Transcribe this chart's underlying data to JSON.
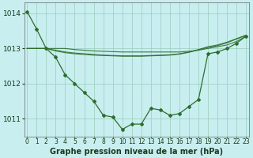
{
  "title": "Graphe pression niveau de la mer (hPa)",
  "background_color": "#c8eef0",
  "grid_color": "#99ccbb",
  "line_color": "#2d6e2d",
  "x_labels": [
    "0",
    "1",
    "2",
    "3",
    "4",
    "5",
    "6",
    "7",
    "8",
    "9",
    "10",
    "11",
    "12",
    "13",
    "14",
    "15",
    "16",
    "17",
    "18",
    "19",
    "20",
    "21",
    "22",
    "23"
  ],
  "hours": [
    0,
    1,
    2,
    3,
    4,
    5,
    6,
    7,
    8,
    9,
    10,
    11,
    12,
    13,
    14,
    15,
    16,
    17,
    18,
    19,
    20,
    21,
    22,
    23
  ],
  "pressure_main": [
    1014.05,
    1013.55,
    1013.0,
    1012.75,
    1012.25,
    1012.0,
    1011.75,
    1011.5,
    1011.1,
    1011.05,
    1010.7,
    1010.85,
    1010.85,
    1011.3,
    1011.25,
    1011.1,
    1011.15,
    1011.35,
    1011.55,
    1012.85,
    1012.9,
    1013.0,
    1013.15,
    1013.35
  ],
  "pressure_smooth1": [
    1013.0,
    1013.0,
    1013.0,
    1013.0,
    1013.0,
    1012.97,
    1012.95,
    1012.93,
    1012.92,
    1012.91,
    1012.9,
    1012.9,
    1012.9,
    1012.9,
    1012.9,
    1012.9,
    1012.9,
    1012.92,
    1012.95,
    1013.0,
    1013.05,
    1013.1,
    1013.2,
    1013.35
  ],
  "pressure_smooth2": [
    1013.0,
    1013.0,
    1013.0,
    1012.95,
    1012.9,
    1012.87,
    1012.85,
    1012.83,
    1012.81,
    1012.8,
    1012.79,
    1012.79,
    1012.79,
    1012.8,
    1012.81,
    1012.82,
    1012.85,
    1012.9,
    1012.97,
    1013.05,
    1013.1,
    1013.18,
    1013.28,
    1013.38
  ],
  "pressure_smooth3": [
    1013.0,
    1013.0,
    1013.0,
    1012.93,
    1012.88,
    1012.85,
    1012.83,
    1012.81,
    1012.8,
    1012.79,
    1012.78,
    1012.78,
    1012.78,
    1012.79,
    1012.8,
    1012.81,
    1012.84,
    1012.89,
    1012.96,
    1013.03,
    1013.08,
    1013.16,
    1013.27,
    1013.37
  ],
  "ylim": [
    1010.5,
    1014.3
  ],
  "yticks": [
    1011,
    1012,
    1013,
    1014
  ],
  "ylabel_fontsize": 6.5,
  "xlabel_fontsize": 5.5,
  "title_fontsize": 7,
  "figwidth": 3.2,
  "figheight": 2.0,
  "dpi": 100
}
